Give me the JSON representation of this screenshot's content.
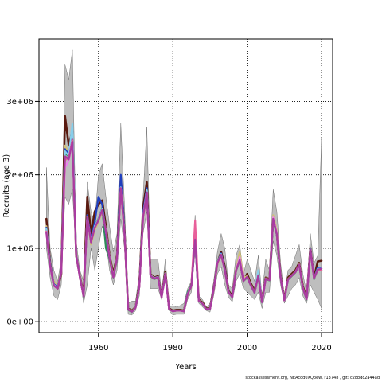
{
  "chart_data": {
    "type": "line",
    "title": "",
    "xlabel": "Years",
    "ylabel": "Recruits (age 3)",
    "xlim": [
      1944,
      2023
    ],
    "ylim": [
      -150000,
      3850000
    ],
    "x_ticks": [
      1960,
      1980,
      2000,
      2020
    ],
    "x_tick_labels": [
      "1960",
      "1980",
      "2000",
      "2020"
    ],
    "y_ticks": [
      0,
      1000000,
      2000000,
      3000000
    ],
    "y_tick_labels": [
      "0e+00",
      "1e+06",
      "2e+06",
      "3e+06"
    ],
    "grid": "dotted",
    "legend": "none",
    "band_color": "#bebebe",
    "x": [
      1946,
      1947,
      1948,
      1949,
      1950,
      1951,
      1952,
      1953,
      1954,
      1955,
      1956,
      1957,
      1958,
      1959,
      1960,
      1961,
      1962,
      1963,
      1964,
      1965,
      1966,
      1967,
      1968,
      1969,
      1970,
      1971,
      1972,
      1973,
      1974,
      1975,
      1976,
      1977,
      1978,
      1979,
      1980,
      1981,
      1982,
      1983,
      1984,
      1985,
      1986,
      1987,
      1988,
      1989,
      1990,
      1991,
      1992,
      1993,
      1994,
      1995,
      1996,
      1997,
      1998,
      1999,
      2000,
      2001,
      2002,
      2003,
      2004,
      2005,
      2006,
      2007,
      2008,
      2009,
      2010,
      2011,
      2012,
      2013,
      2014,
      2015,
      2016,
      2017,
      2018,
      2019,
      2020
    ],
    "band": {
      "lower": [
        1000000,
        600000,
        350000,
        300000,
        500000,
        1700000,
        1600000,
        1800000,
        900000,
        600000,
        250000,
        500000,
        1000000,
        700000,
        1000000,
        1300000,
        1100000,
        700000,
        500000,
        700000,
        1400000,
        1000000,
        100000,
        90000,
        150000,
        350000,
        1200000,
        1500000,
        450000,
        450000,
        450000,
        300000,
        550000,
        150000,
        90000,
        100000,
        100000,
        100000,
        300000,
        400000,
        950000,
        250000,
        200000,
        150000,
        130000,
        350000,
        650000,
        750000,
        500000,
        330000,
        270000,
        550000,
        650000,
        450000,
        400000,
        350000,
        300000,
        400000,
        180000,
        400000,
        400000,
        1100000,
        900000,
        500000,
        250000,
        350000,
        450000,
        500000,
        600000,
        350000,
        250000,
        500000,
        400000,
        300000,
        180000
      ],
      "upper": [
        2100000,
        1000000,
        700000,
        550000,
        850000,
        3500000,
        3300000,
        3700000,
        1100000,
        700000,
        550000,
        1900000,
        1500000,
        1350000,
        2000000,
        2150000,
        1700000,
        1300000,
        950000,
        1200000,
        2700000,
        1600000,
        250000,
        280000,
        280000,
        650000,
        1700000,
        2650000,
        850000,
        850000,
        850000,
        400000,
        850000,
        200000,
        220000,
        200000,
        220000,
        250000,
        450000,
        550000,
        1450000,
        350000,
        300000,
        200000,
        250000,
        550000,
        950000,
        1200000,
        1000000,
        500000,
        450000,
        900000,
        1050000,
        650000,
        850000,
        700000,
        550000,
        900000,
        350000,
        850000,
        700000,
        1800000,
        1500000,
        800000,
        350000,
        700000,
        750000,
        900000,
        1050000,
        650000,
        400000,
        1200000,
        800000,
        900000,
        2500000
      ]
    },
    "series": [
      {
        "color": "#5a1a10",
        "values": [
          1400000,
          800000,
          500000,
          450000,
          650000,
          2800000,
          2400000,
          2600000,
          900000,
          620000,
          380000,
          1700000,
          1200000,
          1500000,
          1600000,
          1650000,
          1300000,
          900000,
          650000,
          900000,
          1950000,
          1250000,
          180000,
          150000,
          200000,
          500000,
          1550000,
          1900000,
          650000,
          600000,
          620000,
          350000,
          680000,
          180000,
          150000,
          160000,
          160000,
          150000,
          380000,
          500000,
          1150000,
          300000,
          260000,
          180000,
          180000,
          450000,
          800000,
          950000,
          750000,
          420000,
          350000,
          700000,
          850000,
          560000,
          650000,
          520000,
          420000,
          650000,
          280000,
          600000,
          580000,
          1400000,
          1200000,
          620000,
          300000,
          600000,
          650000,
          700000,
          800000,
          480000,
          320000,
          1000000,
          600000,
          820000,
          830000
        ]
      },
      {
        "color": "#cdc17a",
        "values": [
          1300000,
          750000,
          550000,
          500000,
          700000,
          2400000,
          2300000,
          2500000,
          950000,
          620000,
          360000,
          1450000,
          1050000,
          1250000,
          1350000,
          1500000,
          1250000,
          880000,
          620000,
          880000,
          1800000,
          1200000,
          170000,
          140000,
          200000,
          480000,
          1400000,
          1750000,
          640000,
          590000,
          610000,
          340000,
          660000,
          170000,
          140000,
          150000,
          150000,
          140000,
          370000,
          480000,
          1100000,
          290000,
          250000,
          170000,
          170000,
          420000,
          780000,
          900000,
          700000,
          400000,
          340000,
          720000,
          950000,
          600000,
          620000,
          500000,
          400000,
          640000,
          270000,
          590000,
          570000,
          1450000,
          1250000,
          600000,
          290000,
          580000,
          630000,
          680000,
          780000,
          460000,
          310000,
          950000,
          600000,
          720000,
          700000
        ]
      },
      {
        "color": "#2e8b57",
        "values": [
          1250000,
          780000,
          500000,
          460000,
          680000,
          2300000,
          2250000,
          2550000,
          920000,
          600000,
          340000,
          1400000,
          1100000,
          1300000,
          1400000,
          1550000,
          1000000,
          850000,
          600000,
          850000,
          1850000,
          1220000,
          160000,
          130000,
          190000,
          470000,
          1450000,
          1800000,
          620000,
          580000,
          600000,
          330000,
          650000,
          170000,
          140000,
          150000,
          150000,
          140000,
          400000,
          500000,
          1100000,
          280000,
          240000,
          170000,
          170000,
          430000,
          820000,
          920000,
          710000,
          400000,
          330000,
          690000,
          830000,
          550000,
          600000,
          490000,
          390000,
          620000,
          260000,
          580000,
          560000,
          1380000,
          1180000,
          600000,
          290000,
          570000,
          620000,
          670000,
          770000,
          450000,
          300000,
          980000,
          580000,
          710000,
          700000
        ]
      },
      {
        "color": "#1f3fbf",
        "values": [
          1280000,
          790000,
          510000,
          470000,
          690000,
          2350000,
          2280000,
          2600000,
          930000,
          610000,
          350000,
          1450000,
          1120000,
          1350000,
          1700000,
          1600000,
          1200000,
          860000,
          610000,
          860000,
          2000000,
          1240000,
          165000,
          135000,
          195000,
          480000,
          1480000,
          1820000,
          630000,
          590000,
          610000,
          335000,
          655000,
          170000,
          140000,
          150000,
          150000,
          140000,
          380000,
          490000,
          1120000,
          285000,
          245000,
          170000,
          170000,
          440000,
          800000,
          930000,
          720000,
          405000,
          335000,
          700000,
          840000,
          560000,
          610000,
          495000,
          395000,
          630000,
          265000,
          585000,
          565000,
          1390000,
          1190000,
          605000,
          290000,
          575000,
          625000,
          675000,
          775000,
          455000,
          305000,
          990000,
          590000,
          740000,
          720000
        ]
      },
      {
        "color": "#ee82ee",
        "values": [
          1200000,
          760000,
          490000,
          450000,
          670000,
          2100000,
          2200000,
          2450000,
          910000,
          600000,
          345000,
          1420000,
          1080000,
          1280000,
          1380000,
          1520000,
          1230000,
          870000,
          605000,
          870000,
          1820000,
          1210000,
          165000,
          135000,
          190000,
          470000,
          1420000,
          1780000,
          625000,
          585000,
          605000,
          330000,
          650000,
          170000,
          140000,
          150000,
          150000,
          140000,
          375000,
          485000,
          1300000,
          285000,
          245000,
          170000,
          170000,
          435000,
          810000,
          910000,
          705000,
          400000,
          335000,
          700000,
          880000,
          570000,
          610000,
          495000,
          395000,
          635000,
          265000,
          585000,
          565000,
          1420000,
          1220000,
          605000,
          290000,
          575000,
          625000,
          675000,
          775000,
          455000,
          305000,
          970000,
          590000,
          710000,
          720000
        ]
      },
      {
        "color": "#87ceeb",
        "values": [
          1260000,
          770000,
          500000,
          460000,
          680000,
          2320000,
          2260000,
          2700000,
          925000,
          605000,
          345000,
          1430000,
          1090000,
          1300000,
          1390000,
          1540000,
          1240000,
          875000,
          610000,
          875000,
          1830000,
          1215000,
          165000,
          135000,
          195000,
          475000,
          1440000,
          1790000,
          630000,
          590000,
          610000,
          335000,
          655000,
          170000,
          140000,
          150000,
          150000,
          140000,
          380000,
          490000,
          1110000,
          285000,
          245000,
          170000,
          170000,
          440000,
          805000,
          920000,
          710000,
          405000,
          335000,
          695000,
          845000,
          555000,
          610000,
          495000,
          395000,
          700000,
          265000,
          585000,
          565000,
          1400000,
          1195000,
          605000,
          290000,
          575000,
          625000,
          675000,
          775000,
          455000,
          305000,
          985000,
          590000,
          720000,
          720000
        ]
      },
      {
        "color": "#b03a8c",
        "values": [
          1220000,
          760000,
          490000,
          450000,
          670000,
          2250000,
          2220000,
          2480000,
          915000,
          600000,
          345000,
          1420000,
          1080000,
          1280000,
          1380000,
          1520000,
          1230000,
          865000,
          605000,
          865000,
          1820000,
          1210000,
          165000,
          135000,
          190000,
          470000,
          1420000,
          1760000,
          625000,
          585000,
          605000,
          330000,
          650000,
          170000,
          140000,
          150000,
          150000,
          140000,
          375000,
          485000,
          1120000,
          285000,
          245000,
          170000,
          170000,
          435000,
          800000,
          910000,
          705000,
          400000,
          335000,
          695000,
          840000,
          555000,
          610000,
          495000,
          395000,
          630000,
          265000,
          585000,
          565000,
          1400000,
          1190000,
          605000,
          290000,
          575000,
          625000,
          675000,
          775000,
          455000,
          305000,
          980000,
          590000,
          710000,
          700000
        ]
      },
      {
        "color": "#e8609a",
        "values": [
          1230000,
          765000,
          495000,
          455000,
          675000,
          2200000,
          2230000,
          2470000,
          915000,
          600000,
          345000,
          1420000,
          1080000,
          1280000,
          1380000,
          1520000,
          1230000,
          865000,
          605000,
          865000,
          1820000,
          1210000,
          165000,
          135000,
          190000,
          470000,
          1420000,
          1760000,
          625000,
          585000,
          605000,
          330000,
          650000,
          170000,
          140000,
          150000,
          150000,
          140000,
          375000,
          485000,
          1380000,
          285000,
          245000,
          170000,
          170000,
          435000,
          800000,
          910000,
          705000,
          400000,
          335000,
          695000,
          840000,
          555000,
          610000,
          495000,
          395000,
          630000,
          265000,
          585000,
          565000,
          1400000,
          1190000,
          605000,
          290000,
          575000,
          625000,
          675000,
          775000,
          455000,
          305000,
          980000,
          590000,
          710000,
          700000
        ]
      },
      {
        "color": "#a83ca0",
        "values": [
          1210000,
          755000,
          490000,
          450000,
          670000,
          2250000,
          2210000,
          2450000,
          910000,
          600000,
          345000,
          1420000,
          1080000,
          1280000,
          1380000,
          1520000,
          1230000,
          865000,
          605000,
          865000,
          1820000,
          1210000,
          165000,
          135000,
          190000,
          470000,
          1420000,
          1760000,
          625000,
          585000,
          605000,
          330000,
          650000,
          170000,
          140000,
          150000,
          150000,
          140000,
          375000,
          485000,
          1120000,
          285000,
          245000,
          170000,
          170000,
          435000,
          800000,
          910000,
          705000,
          400000,
          335000,
          695000,
          840000,
          555000,
          610000,
          495000,
          395000,
          630000,
          265000,
          585000,
          565000,
          1400000,
          1190000,
          605000,
          290000,
          575000,
          625000,
          675000,
          775000,
          455000,
          305000,
          980000,
          590000,
          710000,
          720000
        ]
      }
    ]
  },
  "footer": "stockassessment.org, NEAcod0XQpew, r13748 , git: c28bdc2a44ad"
}
